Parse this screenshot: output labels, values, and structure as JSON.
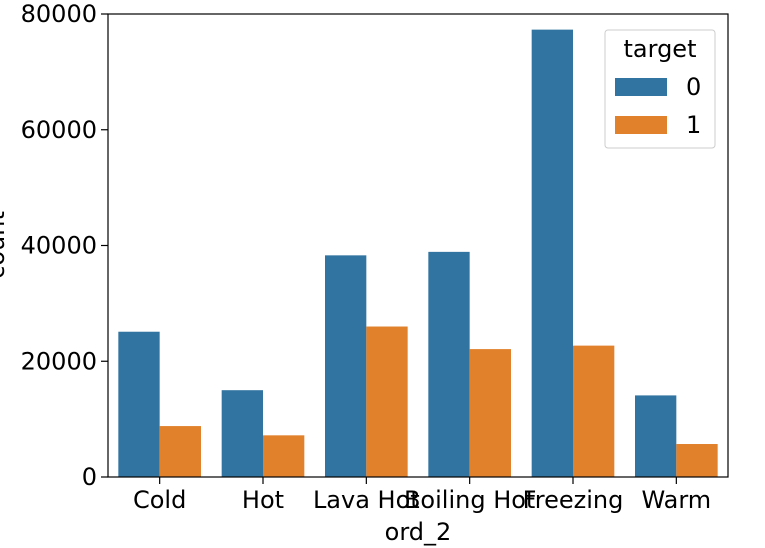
{
  "chart_data": {
    "type": "bar",
    "title": "",
    "xlabel": "ord_2",
    "ylabel": "count",
    "categories": [
      "Cold",
      "Hot",
      "Lava Hot",
      "Boiling Hot",
      "Freezing",
      "Warm"
    ],
    "series": [
      {
        "name": "0",
        "color": "#3274a1",
        "values": [
          25100,
          15000,
          38300,
          38900,
          77300,
          14100
        ]
      },
      {
        "name": "1",
        "color": "#e1812c",
        "values": [
          8800,
          7200,
          26000,
          22100,
          22700,
          5700
        ]
      }
    ],
    "ylim": [
      0,
      80000
    ],
    "yticks": [
      0,
      20000,
      40000,
      60000,
      80000
    ],
    "ytick_labels": [
      "0",
      "20000",
      "40000",
      "60000",
      "80000"
    ],
    "grid": false,
    "legend": {
      "title": "target",
      "placement": "top-right"
    }
  }
}
